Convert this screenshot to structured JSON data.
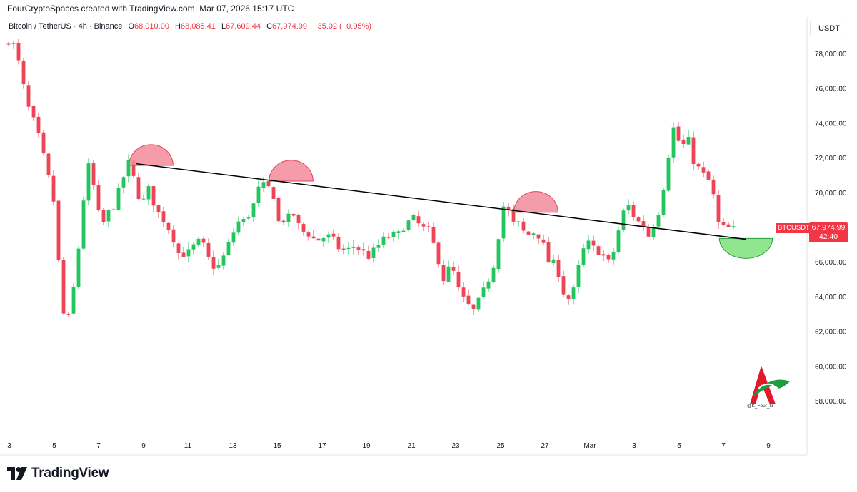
{
  "header": {
    "author_line": "FourCryptoSpaces created with TradingView.com, Mar 07, 2026 15:17 UTC",
    "symbol": "Bitcoin / TetherUS · 4h · Binance",
    "open_label": "O",
    "open": "68,010.00",
    "high_label": "H",
    "high": "68,085.41",
    "low_label": "L",
    "low": "67,609.44",
    "close_label": "C",
    "close": "67,974.99",
    "change": "−35.02 (−0.05%)"
  },
  "currency": "USDT",
  "last_price": {
    "symbol": "BTCUSDT",
    "price": "67,974.99",
    "countdown": "42:40"
  },
  "watermark_handle": "@K_Four_kr",
  "branding": {
    "name": "TradingView"
  },
  "colors": {
    "up": "#089981",
    "down": "#f23645",
    "upBody": "#22c55e",
    "downBody": "#ef4456",
    "trendline": "#000000",
    "resistance_fill": "#f28b9b",
    "support_fill": "#7ee07b"
  },
  "chart_data": {
    "type": "candlestick",
    "ylim": [
      56500,
      79500
    ],
    "y_ticks": [
      78000,
      76000,
      74000,
      72000,
      70000,
      68000,
      66000,
      64000,
      62000,
      60000,
      58000
    ],
    "y_tick_labels": [
      "78,000.00",
      "76,000.00",
      "74,000.00",
      "72,000.00",
      "70,000.00",
      "68,000.00",
      "66,000.00",
      "64,000.00",
      "62,000.00",
      "60,000.00",
      "58,000.00"
    ],
    "x_tick_labels": [
      "3",
      "5",
      "7",
      "9",
      "11",
      "13",
      "15",
      "17",
      "19",
      "21",
      "23",
      "25",
      "27",
      "Mar",
      "3",
      "5",
      "7",
      "9"
    ],
    "candle_path": [
      [
        0,
        78500
      ],
      [
        1,
        79000
      ],
      [
        3,
        77000
      ],
      [
        4,
        75200
      ],
      [
        6,
        73800
      ],
      [
        8,
        71500
      ],
      [
        9.5,
        69500
      ],
      [
        10.5,
        66000
      ],
      [
        11.5,
        63000
      ],
      [
        12.5,
        62800
      ],
      [
        13.5,
        64500
      ],
      [
        14.5,
        66800
      ],
      [
        15.5,
        69600
      ],
      [
        16.5,
        71500
      ],
      [
        18,
        69800
      ],
      [
        19,
        67800
      ],
      [
        20,
        68700
      ],
      [
        21.5,
        69200
      ],
      [
        23,
        70500
      ],
      [
        24.5,
        71700
      ],
      [
        26,
        70400
      ],
      [
        27,
        69200
      ],
      [
        28.5,
        70200
      ],
      [
        30,
        69000
      ],
      [
        31.5,
        68400
      ],
      [
        33,
        67700
      ],
      [
        34.5,
        66500
      ],
      [
        36,
        66400
      ],
      [
        37.5,
        66900
      ],
      [
        39,
        67300
      ],
      [
        40.5,
        66200
      ],
      [
        42,
        65500
      ],
      [
        43.5,
        66300
      ],
      [
        45,
        67400
      ],
      [
        46.5,
        68300
      ],
      [
        48,
        68400
      ],
      [
        49.5,
        69300
      ],
      [
        50.5,
        70200
      ],
      [
        52,
        70500
      ],
      [
        53.5,
        69800
      ],
      [
        54.5,
        68300
      ],
      [
        56,
        68500
      ],
      [
        57.5,
        68700
      ],
      [
        59,
        67800
      ],
      [
        60.5,
        67600
      ],
      [
        62,
        67200
      ],
      [
        63.5,
        67400
      ],
      [
        65,
        67500
      ],
      [
        66.5,
        66800
      ],
      [
        68,
        66600
      ],
      [
        69.5,
        66900
      ],
      [
        71,
        66700
      ],
      [
        72.5,
        66300
      ],
      [
        74,
        66800
      ],
      [
        75.5,
        67300
      ],
      [
        77,
        67500
      ],
      [
        78.5,
        67600
      ],
      [
        80,
        68200
      ],
      [
        81.5,
        68500
      ],
      [
        83,
        68000
      ],
      [
        84.5,
        67800
      ],
      [
        86,
        66600
      ],
      [
        87.5,
        65000
      ],
      [
        89,
        65900
      ],
      [
        90.5,
        64400
      ],
      [
        92,
        63600
      ],
      [
        93.5,
        63200
      ],
      [
        95,
        64000
      ],
      [
        96.5,
        65000
      ],
      [
        98,
        66200
      ],
      [
        99,
        68800
      ],
      [
        100,
        69600
      ],
      [
        101,
        68200
      ],
      [
        102.5,
        68200
      ],
      [
        104,
        67500
      ],
      [
        105.5,
        67700
      ],
      [
        107,
        67400
      ],
      [
        108.5,
        66000
      ],
      [
        110,
        65900
      ],
      [
        111.5,
        64200
      ],
      [
        113,
        63700
      ],
      [
        114.5,
        65700
      ],
      [
        116,
        67200
      ],
      [
        117.5,
        66800
      ],
      [
        119,
        66500
      ],
      [
        120.5,
        66000
      ],
      [
        122,
        66900
      ],
      [
        123,
        68700
      ],
      [
        124.5,
        69200
      ],
      [
        126,
        68400
      ],
      [
        127.5,
        68100
      ],
      [
        128.5,
        67500
      ],
      [
        130,
        68500
      ],
      [
        131,
        69200
      ],
      [
        132,
        71400
      ],
      [
        133.5,
        73700
      ],
      [
        135,
        72600
      ],
      [
        136.5,
        73000
      ],
      [
        137.5,
        71800
      ],
      [
        139,
        71200
      ],
      [
        140.5,
        70700
      ],
      [
        141.5,
        69800
      ],
      [
        142.5,
        68200
      ],
      [
        143.5,
        68000
      ],
      [
        145,
        67900
      ]
    ],
    "trendline": {
      "from": [
        25.5,
        71650
      ],
      "to": [
        147.5,
        67300
      ]
    },
    "resistance_arcs": [
      {
        "center": [
          28.5,
          71550
        ],
        "radius_x": 4.4,
        "radius_y": 1200
      },
      {
        "center": [
          56.5,
          70650
        ],
        "radius_x": 4.4,
        "radius_y": 1200
      },
      {
        "center": [
          105.5,
          68850
        ],
        "radius_x": 4.4,
        "radius_y": 1200
      }
    ],
    "support_arc": {
      "center": [
        147.5,
        67350
      ],
      "radius_x": 5.3,
      "radius_y": 1150
    }
  }
}
